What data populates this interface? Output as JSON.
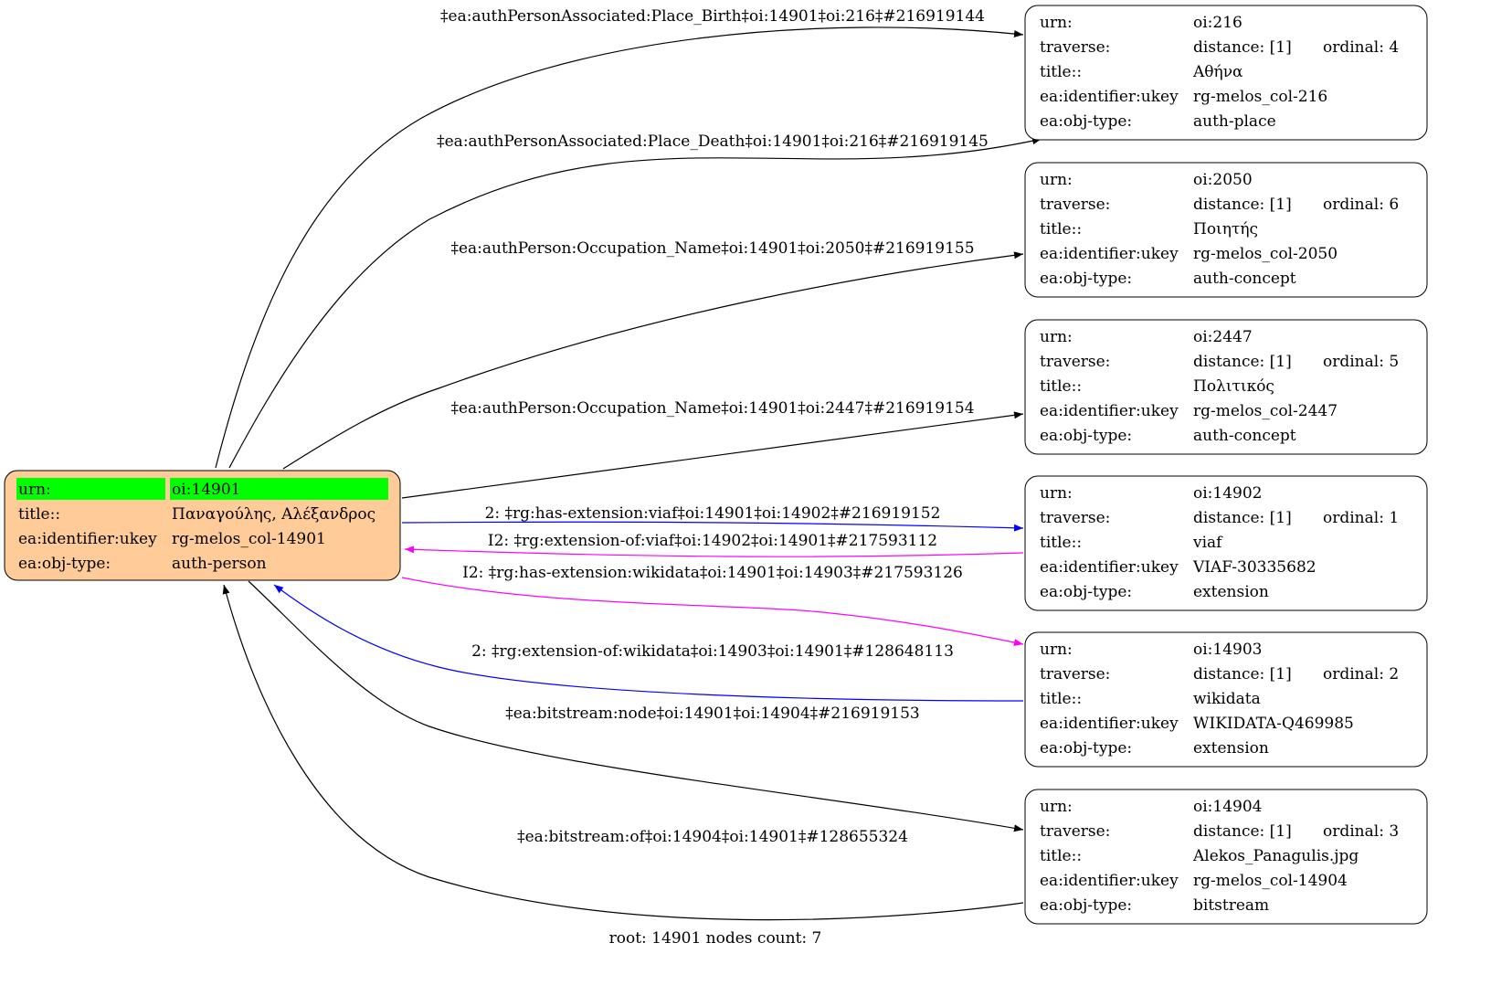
{
  "root_node": {
    "fill": "#ffcc99",
    "highlight": "#00ff00",
    "rows": [
      {
        "key": "urn:",
        "value": "oi:14901"
      },
      {
        "key": "title::",
        "value": "Παναγούλης, Αλέξανδρος"
      },
      {
        "key": "ea:identifier:ukey",
        "value": "rg-melos_col-14901"
      },
      {
        "key": "ea:obj-type:",
        "value": "auth-person"
      }
    ]
  },
  "nodes": [
    {
      "urn": "oi:216",
      "distance": "distance: [1]",
      "ordinal": "ordinal: 4",
      "title": "Αθήνα",
      "ukey": "rg-melos_col-216",
      "obj_type": "auth-place"
    },
    {
      "urn": "oi:2050",
      "distance": "distance: [1]",
      "ordinal": "ordinal: 6",
      "title": "Ποιητής",
      "ukey": "rg-melos_col-2050",
      "obj_type": "auth-concept"
    },
    {
      "urn": "oi:2447",
      "distance": "distance: [1]",
      "ordinal": "ordinal: 5",
      "title": "Πολιτικός",
      "ukey": "rg-melos_col-2447",
      "obj_type": "auth-concept"
    },
    {
      "urn": "oi:14902",
      "distance": "distance: [1]",
      "ordinal": "ordinal: 1",
      "title": "viaf",
      "ukey": "VIAF-30335682",
      "obj_type": "extension"
    },
    {
      "urn": "oi:14903",
      "distance": "distance: [1]",
      "ordinal": "ordinal: 2",
      "title": "wikidata",
      "ukey": "WIKIDATA-Q469985",
      "obj_type": "extension"
    },
    {
      "urn": "oi:14904",
      "distance": "distance: [1]",
      "ordinal": "ordinal: 3",
      "title": "Alekos_Panagulis.jpg",
      "ukey": "rg-melos_col-14904",
      "obj_type": "bitstream"
    }
  ],
  "row_keys": {
    "urn": "urn:",
    "traverse": "traverse:",
    "title": "title::",
    "ukey": "ea:identifier:ukey",
    "obj_type": "ea:obj-type:"
  },
  "edges": [
    {
      "label": "‡ea:authPersonAssociated:Place_Birth‡oi:14901‡oi:216‡#216919144",
      "color": "#000000"
    },
    {
      "label": "‡ea:authPersonAssociated:Place_Death‡oi:14901‡oi:216‡#216919145",
      "color": "#000000"
    },
    {
      "label": "‡ea:authPerson:Occupation_Name‡oi:14901‡oi:2050‡#216919155",
      "color": "#000000"
    },
    {
      "label": "‡ea:authPerson:Occupation_Name‡oi:14901‡oi:2447‡#216919154",
      "color": "#000000"
    },
    {
      "label": "2: ‡rg:has-extension:viaf‡oi:14901‡oi:14902‡#216919152",
      "color": "#0000ff"
    },
    {
      "label": "I2: ‡rg:extension-of:viaf‡oi:14902‡oi:14901‡#217593112",
      "color": "#ff00ff"
    },
    {
      "label": "I2: ‡rg:has-extension:wikidata‡oi:14901‡oi:14903‡#217593126",
      "color": "#ff00ff"
    },
    {
      "label": "2: ‡rg:extension-of:wikidata‡oi:14903‡oi:14901‡#128648113",
      "color": "#0000ff"
    },
    {
      "label": "‡ea:bitstream:node‡oi:14901‡oi:14904‡#216919153",
      "color": "#000000"
    },
    {
      "label": "‡ea:bitstream:of‡oi:14904‡oi:14901‡#128655324",
      "color": "#000000"
    }
  ],
  "footer": "root: 14901 nodes count: 7"
}
